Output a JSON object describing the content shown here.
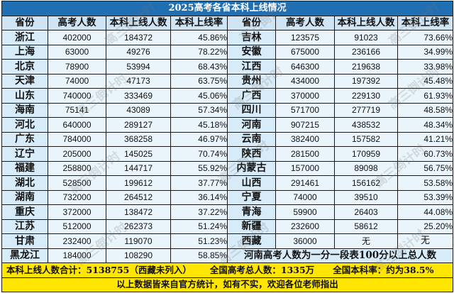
{
  "title": "2025高考各省本科上线情况",
  "headers": [
    "省份",
    "高考人数",
    "本科上线人数",
    "本科上线率",
    "省份",
    "高考人数",
    "本科上线人数",
    "本科上线率"
  ],
  "left": [
    [
      "浙江",
      "402000",
      "184372",
      "45.86%"
    ],
    [
      "上海",
      "63000",
      "49276",
      "78.22%"
    ],
    [
      "北京",
      "78900",
      "53994",
      "68.43%"
    ],
    [
      "天津",
      "74000",
      "47173",
      "63.75%"
    ],
    [
      "山东",
      "740000",
      "333469",
      "45.06%"
    ],
    [
      "海南",
      "75141",
      "43089",
      "57.34%"
    ],
    [
      "河北",
      "640000",
      "289127",
      "45.18%"
    ],
    [
      "广东",
      "784000",
      "368258",
      "46.97%"
    ],
    [
      "辽宁",
      "205000",
      "145025",
      "70.74%"
    ],
    [
      "福建",
      "258800",
      "144717",
      "55.92%"
    ],
    [
      "湖北",
      "528500",
      "199612",
      "37.77%"
    ],
    [
      "湖南",
      "732000",
      "264512",
      "36.14%"
    ],
    [
      "重庆",
      "372000",
      "138472",
      "37.22%"
    ],
    [
      "江苏",
      "512000",
      "262373",
      "51.24%"
    ],
    [
      "甘肃",
      "232400",
      "119070",
      "51.23%"
    ],
    [
      "黑龙江",
      "184000",
      "108290",
      "58.85%"
    ]
  ],
  "right": [
    [
      "吉林",
      "123575",
      "91023",
      "73.66%"
    ],
    [
      "安徽",
      "675000",
      "236166",
      "34.99%"
    ],
    [
      "江西",
      "646300",
      "219638",
      "33.98%"
    ],
    [
      "贵州",
      "434000",
      "197392",
      "45.48%"
    ],
    [
      "广西",
      "370000",
      "229130",
      "61.93%"
    ],
    [
      "四川",
      "571700",
      "277719",
      "48.58%"
    ],
    [
      "河南",
      "907215",
      "438532",
      "48.34%"
    ],
    [
      "云南",
      "382400",
      "157582",
      "41.21%"
    ],
    [
      "陕西",
      "281500",
      "170959",
      "60.73%"
    ],
    [
      "内蒙古",
      "157000",
      "89098",
      "56.75%"
    ],
    [
      "山西",
      "291461",
      "156162",
      "53.58%"
    ],
    [
      "宁夏",
      "74000",
      "39510",
      "53.39%"
    ],
    [
      "青海",
      "59900",
      "26403",
      "44.08%"
    ],
    [
      "新疆",
      "232600",
      "58612",
      "25.20%"
    ],
    [
      "西藏",
      "36000",
      "无",
      "无"
    ]
  ],
  "note": "河南高考人数为一分一段表100分以上总人数",
  "summary": {
    "total_admitted": "本科上线人数合计：5138755（西藏未列入）",
    "total_candidates": "全国高考总人数：1335万",
    "national_rate": "全国本科率：约为38.5%"
  },
  "footer": "以上数据皆来自官方统计，如有不实，欢迎各位老师指出",
  "watermark": "高三倒计时",
  "colors": {
    "title_bg": "#1f6fb2",
    "header_bg": "#cfe4f4",
    "province_bg": "#d7ecf8",
    "cell_bg": "#eaf5fb",
    "summary_bg": "#ffe600"
  }
}
